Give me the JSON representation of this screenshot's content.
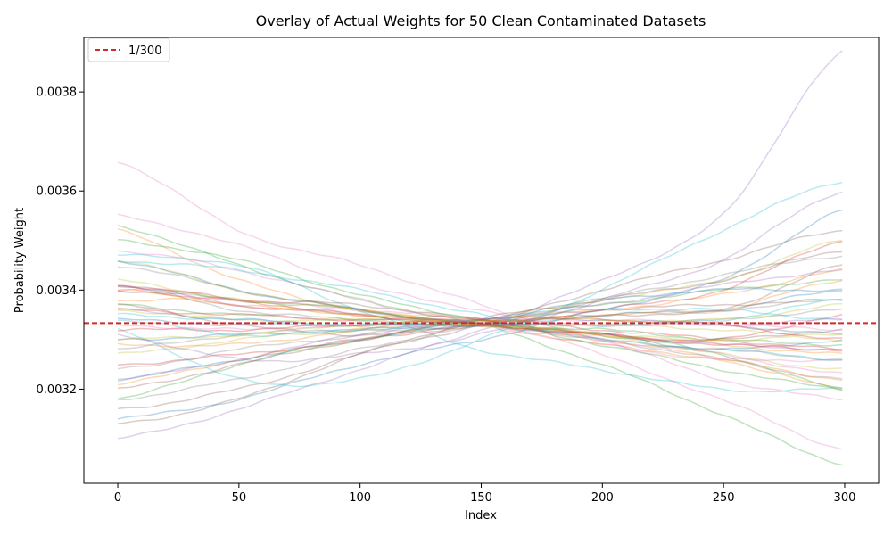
{
  "chart_data": {
    "type": "line",
    "title": "Overlay of Actual Weights for 50 Clean Contaminated Datasets",
    "xlabel": "Index",
    "ylabel": "Probability Weight",
    "xlim": [
      -14,
      314
    ],
    "ylim": [
      0.00301,
      0.00391
    ],
    "x_ticks": [
      0,
      50,
      100,
      150,
      200,
      250,
      300
    ],
    "y_ticks": [
      0.0032,
      0.0034,
      0.0036,
      0.0038
    ],
    "x_tick_labels": [
      "0",
      "50",
      "100",
      "150",
      "200",
      "250",
      "300"
    ],
    "y_tick_labels": [
      "0.0032",
      "0.0034",
      "0.0036",
      "0.0038"
    ],
    "grid": false,
    "legend": {
      "placement": "top-left",
      "entries": [
        {
          "label": "1/300",
          "color": "#d62728",
          "style": "dashed"
        }
      ]
    },
    "reference_line": {
      "y": 0.0033333,
      "color": "#d62728",
      "style": "dashed",
      "label": "1/300"
    },
    "series_x_range": [
      0,
      299
    ],
    "series_alpha": 0.3,
    "series": [
      {
        "color": "#1f77b4",
        "knots": [
          0.00314,
          0.00318,
          0.00325,
          0.0033,
          0.00336,
          0.00342,
          0.00356
        ]
      },
      {
        "color": "#ff7f0e",
        "knots": [
          0.00352,
          0.00342,
          0.00336,
          0.00333,
          0.0033,
          0.00326,
          0.0032
        ]
      },
      {
        "color": "#2ca02c",
        "knots": [
          0.00353,
          0.00345,
          0.00338,
          0.00333,
          0.00325,
          0.00315,
          0.00305
        ]
      },
      {
        "color": "#d62728",
        "knots": [
          0.0034,
          0.00337,
          0.00335,
          0.00334,
          0.00331,
          0.0033,
          0.00335
        ]
      },
      {
        "color": "#9467bd",
        "knots": [
          0.0031,
          0.00316,
          0.00324,
          0.00332,
          0.00342,
          0.00355,
          0.00388
        ]
      },
      {
        "color": "#8c564b",
        "knots": [
          0.00313,
          0.00318,
          0.00327,
          0.00333,
          0.0034,
          0.00346,
          0.00352
        ]
      },
      {
        "color": "#e377c2",
        "knots": [
          0.00366,
          0.00352,
          0.00345,
          0.00337,
          0.00327,
          0.00318,
          0.00308
        ]
      },
      {
        "color": "#7f7f7f",
        "knots": [
          0.00341,
          0.00336,
          0.00334,
          0.00333,
          0.0033,
          0.00326,
          0.00322
        ]
      },
      {
        "color": "#bcbd22",
        "knots": [
          0.00327,
          0.0033,
          0.00332,
          0.00334,
          0.00338,
          0.00342,
          0.0035
        ]
      },
      {
        "color": "#17becf",
        "knots": [
          0.00332,
          0.00322,
          0.00322,
          0.0033,
          0.0034,
          0.00352,
          0.00362
        ]
      },
      {
        "color": "#1f77b4",
        "knots": [
          0.00346,
          0.0034,
          0.00336,
          0.00333,
          0.00331,
          0.00328,
          0.0033
        ]
      },
      {
        "color": "#ff7f0e",
        "knots": [
          0.00321,
          0.00326,
          0.0033,
          0.00334,
          0.00336,
          0.00339,
          0.00344
        ]
      },
      {
        "color": "#2ca02c",
        "knots": [
          0.00337,
          0.00335,
          0.00334,
          0.00333,
          0.00331,
          0.00327,
          0.0032
        ]
      },
      {
        "color": "#d62728",
        "knots": [
          0.00325,
          0.00327,
          0.0033,
          0.00333,
          0.00336,
          0.0034,
          0.0035
        ]
      },
      {
        "color": "#9467bd",
        "knots": [
          0.00341,
          0.00337,
          0.00335,
          0.00333,
          0.00331,
          0.00329,
          0.00328
        ]
      },
      {
        "color": "#8c564b",
        "knots": [
          0.00337,
          0.00333,
          0.00331,
          0.00333,
          0.00335,
          0.00336,
          0.00345
        ]
      },
      {
        "color": "#e377c2",
        "knots": [
          0.00355,
          0.00349,
          0.00341,
          0.00336,
          0.0033,
          0.00322,
          0.00318
        ]
      },
      {
        "color": "#7f7f7f",
        "knots": [
          0.00318,
          0.00322,
          0.00328,
          0.00333,
          0.00338,
          0.00343,
          0.00347
        ]
      },
      {
        "color": "#bcbd22",
        "knots": [
          0.00346,
          0.0034,
          0.00336,
          0.00334,
          0.00331,
          0.00327,
          0.00324
        ]
      },
      {
        "color": "#17becf",
        "knots": [
          0.00347,
          0.00345,
          0.00336,
          0.00328,
          0.00324,
          0.0032,
          0.0032
        ]
      },
      {
        "color": "#1f77b4",
        "knots": [
          0.0033,
          0.00331,
          0.00332,
          0.00333,
          0.00335,
          0.00336,
          0.0034
        ]
      },
      {
        "color": "#ff7f0e",
        "knots": [
          0.00338,
          0.00338,
          0.00336,
          0.00333,
          0.00329,
          0.00326,
          0.00322
        ]
      },
      {
        "color": "#2ca02c",
        "knots": [
          0.00318,
          0.00325,
          0.0033,
          0.00334,
          0.00337,
          0.0034,
          0.00342
        ]
      },
      {
        "color": "#d62728",
        "knots": [
          0.00336,
          0.00335,
          0.00334,
          0.00334,
          0.00332,
          0.0033,
          0.00328
        ]
      },
      {
        "color": "#9467bd",
        "knots": [
          0.00331,
          0.00326,
          0.00327,
          0.00331,
          0.00338,
          0.00346,
          0.0036
        ]
      },
      {
        "color": "#8c564b",
        "knots": [
          0.00341,
          0.00338,
          0.00337,
          0.00334,
          0.00331,
          0.0033,
          0.00332
        ]
      },
      {
        "color": "#e377c2",
        "knots": [
          0.0034,
          0.00338,
          0.00336,
          0.00334,
          0.0033,
          0.00327,
          0.00323
        ]
      },
      {
        "color": "#7f7f7f",
        "knots": [
          0.00324,
          0.00328,
          0.00331,
          0.00333,
          0.00335,
          0.00336,
          0.00338
        ]
      },
      {
        "color": "#bcbd22",
        "knots": [
          0.00336,
          0.00334,
          0.00334,
          0.00333,
          0.00333,
          0.00332,
          0.0033
        ]
      },
      {
        "color": "#17becf",
        "knots": [
          0.00334,
          0.00331,
          0.00332,
          0.00334,
          0.00336,
          0.00336,
          0.00334
        ]
      },
      {
        "color": "#1f77b4",
        "knots": [
          0.00334,
          0.00333,
          0.00333,
          0.00333,
          0.00334,
          0.00333,
          0.00331
        ]
      },
      {
        "color": "#ff7f0e",
        "knots": [
          0.00329,
          0.00329,
          0.00332,
          0.00334,
          0.00335,
          0.00336,
          0.00342
        ]
      },
      {
        "color": "#2ca02c",
        "knots": [
          0.0034,
          0.00338,
          0.00336,
          0.00333,
          0.00332,
          0.0033,
          0.00329
        ]
      },
      {
        "color": "#d62728",
        "knots": [
          0.00332,
          0.00332,
          0.00333,
          0.00334,
          0.00334,
          0.00333,
          0.0033
        ]
      },
      {
        "color": "#9467bd",
        "knots": [
          0.00336,
          0.00334,
          0.00333,
          0.00333,
          0.00333,
          0.00333,
          0.00334
        ]
      },
      {
        "color": "#8c564b",
        "knots": [
          0.00316,
          0.0032,
          0.00327,
          0.00334,
          0.00338,
          0.00342,
          0.00348
        ]
      },
      {
        "color": "#e377c2",
        "knots": [
          0.00348,
          0.00344,
          0.00338,
          0.00333,
          0.00329,
          0.00326,
          0.00326
        ]
      },
      {
        "color": "#7f7f7f",
        "knots": [
          0.00328,
          0.00331,
          0.00332,
          0.00333,
          0.00333,
          0.00334,
          0.00336
        ]
      },
      {
        "color": "#bcbd22",
        "knots": [
          0.00342,
          0.00338,
          0.00335,
          0.00333,
          0.00331,
          0.0033,
          0.00331
        ]
      },
      {
        "color": "#17becf",
        "knots": [
          0.00346,
          0.00344,
          0.0034,
          0.00335,
          0.0033,
          0.00328,
          0.00326
        ]
      },
      {
        "color": "#1f77b4",
        "knots": [
          0.00322,
          0.00326,
          0.0033,
          0.00334,
          0.00338,
          0.0034,
          0.0034
        ]
      },
      {
        "color": "#ff7f0e",
        "knots": [
          0.0034,
          0.00337,
          0.00335,
          0.00333,
          0.00331,
          0.00329,
          0.00327
        ]
      },
      {
        "color": "#2ca02c",
        "knots": [
          0.0035,
          0.00346,
          0.00339,
          0.00334,
          0.00329,
          0.00324,
          0.0032
        ]
      },
      {
        "color": "#d62728",
        "knots": [
          0.00341,
          0.00338,
          0.00335,
          0.00333,
          0.00331,
          0.00329,
          0.00328
        ]
      },
      {
        "color": "#9467bd",
        "knots": [
          0.00322,
          0.00326,
          0.00331,
          0.00334,
          0.00337,
          0.00341,
          0.00344
        ]
      },
      {
        "color": "#8c564b",
        "knots": [
          0.0032,
          0.00325,
          0.0033,
          0.00333,
          0.00336,
          0.00337,
          0.00338
        ]
      },
      {
        "color": "#e377c2",
        "knots": [
          0.00333,
          0.00332,
          0.00333,
          0.00334,
          0.00334,
          0.00333,
          0.00332
        ]
      },
      {
        "color": "#7f7f7f",
        "knots": [
          0.00345,
          0.0034,
          0.00336,
          0.00333,
          0.0033,
          0.00328,
          0.00326
        ]
      },
      {
        "color": "#bcbd22",
        "knots": [
          0.0033,
          0.00331,
          0.00333,
          0.00334,
          0.00334,
          0.00334,
          0.00337
        ]
      },
      {
        "color": "#17becf",
        "knots": [
          0.00335,
          0.00334,
          0.00333,
          0.00333,
          0.00333,
          0.00334,
          0.00338
        ]
      }
    ]
  }
}
